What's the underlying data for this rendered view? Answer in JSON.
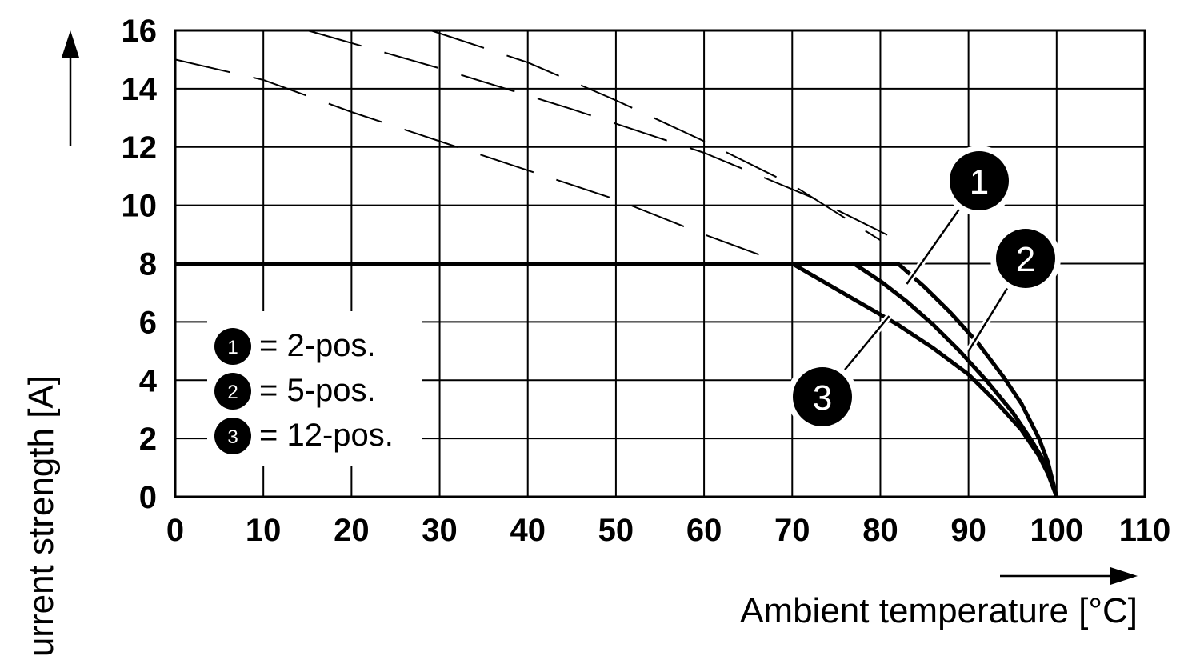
{
  "chart_data": {
    "type": "line",
    "xlabel": "Ambient temperature [°C]",
    "ylabel": "Current strength [A]",
    "xlim": [
      0,
      110
    ],
    "ylim": [
      0,
      16
    ],
    "x_ticks": [
      "0",
      "10",
      "20",
      "30",
      "40",
      "50",
      "60",
      "70",
      "80",
      "90",
      "100",
      "110"
    ],
    "y_ticks": [
      "0",
      "2",
      "4",
      "6",
      "8",
      "10",
      "12",
      "14",
      "16"
    ],
    "grid": true,
    "legend_position": "bottom-left",
    "limit_current": 8,
    "series": [
      {
        "name": "2-pos.",
        "marker": "1",
        "points": [
          [
            0,
            8
          ],
          [
            82,
            8
          ],
          [
            85,
            7.2
          ],
          [
            88,
            6.3
          ],
          [
            91,
            5.3
          ],
          [
            94,
            4.1
          ],
          [
            96,
            3.2
          ],
          [
            98,
            2.0
          ],
          [
            99,
            1.2
          ],
          [
            100,
            0
          ]
        ]
      },
      {
        "name": "5-pos.",
        "marker": "2",
        "points": [
          [
            0,
            8
          ],
          [
            77,
            8
          ],
          [
            80,
            7.4
          ],
          [
            83,
            6.7
          ],
          [
            86,
            5.9
          ],
          [
            89,
            5.0
          ],
          [
            92,
            4.0
          ],
          [
            95,
            2.9
          ],
          [
            97,
            2.0
          ],
          [
            99,
            1.0
          ],
          [
            100,
            0
          ]
        ]
      },
      {
        "name": "12-pos.",
        "marker": "3",
        "points": [
          [
            0,
            8
          ],
          [
            70,
            8
          ],
          [
            74,
            7.3
          ],
          [
            78,
            6.6
          ],
          [
            82,
            5.9
          ],
          [
            86,
            5.1
          ],
          [
            90,
            4.2
          ],
          [
            93,
            3.3
          ],
          [
            96,
            2.3
          ],
          [
            98,
            1.4
          ],
          [
            99,
            0.8
          ],
          [
            100,
            0
          ]
        ]
      }
    ],
    "dashed_curves": [
      {
        "points": [
          [
            15,
            16
          ],
          [
            30,
            14.7
          ],
          [
            45,
            13.3
          ],
          [
            60,
            11.8
          ],
          [
            72,
            10.3
          ],
          [
            82,
            8.8
          ]
        ]
      },
      {
        "points": [
          [
            29,
            16
          ],
          [
            40,
            14.9
          ],
          [
            50,
            13.6
          ],
          [
            60,
            12.2
          ],
          [
            70,
            10.7
          ],
          [
            80,
            8.8
          ]
        ]
      },
      {
        "points": [
          [
            0,
            15
          ],
          [
            10,
            14.3
          ],
          [
            20,
            13.2
          ],
          [
            30,
            12.2
          ],
          [
            40,
            11.2
          ],
          [
            50,
            10.2
          ],
          [
            60,
            9.0
          ],
          [
            69,
            8
          ]
        ]
      }
    ],
    "legend": [
      {
        "marker": "1",
        "label": "= 2-pos."
      },
      {
        "marker": "2",
        "label": "= 5-pos."
      },
      {
        "marker": "3",
        "label": "= 12-pos."
      }
    ],
    "markers": [
      {
        "label": "1",
        "anchor": [
          83,
          7.3
        ]
      },
      {
        "label": "2",
        "anchor": [
          90,
          5.0
        ]
      },
      {
        "label": "3",
        "anchor": [
          81,
          6.2
        ]
      }
    ]
  }
}
